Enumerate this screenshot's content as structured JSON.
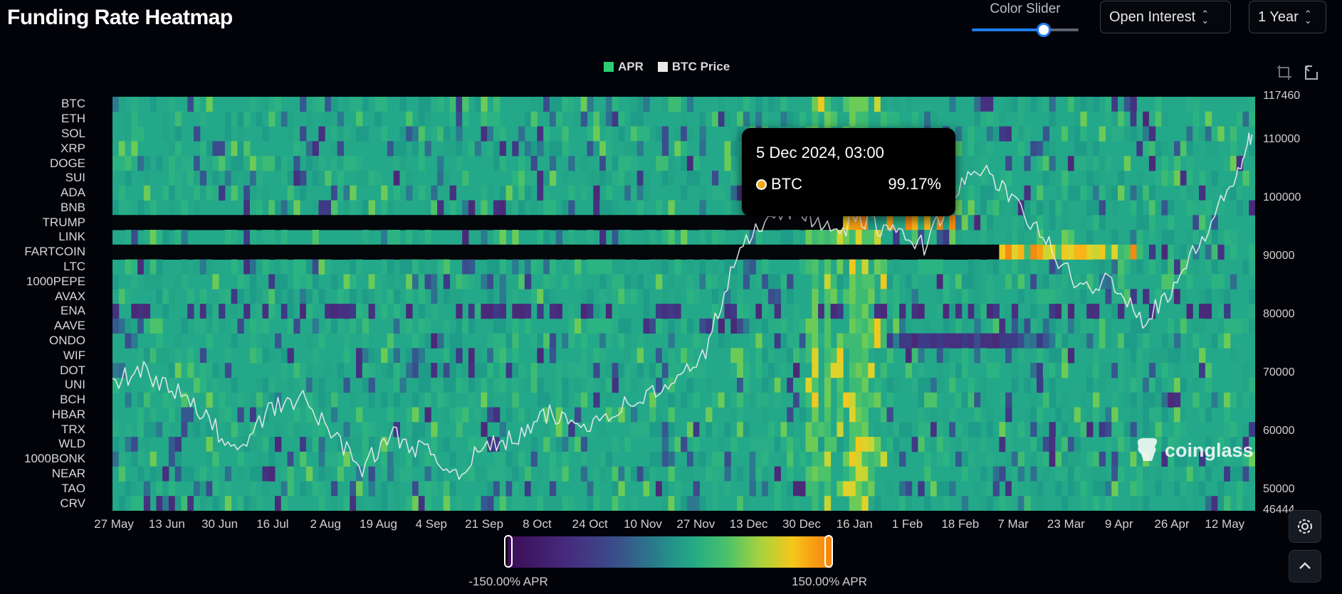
{
  "header": {
    "title": "Funding Rate Heatmap",
    "color_slider_label": "Color Slider",
    "color_slider_value": 0.66,
    "metric_select": "Open Interest",
    "range_select": "1 Year"
  },
  "legend": [
    {
      "label": "APR",
      "color": "#2ecc71"
    },
    {
      "label": "BTC Price",
      "color": "#eaeaea"
    }
  ],
  "tooltip": {
    "title": "5 Dec 2024, 03:00",
    "series": "BTC",
    "value": "99.17%"
  },
  "watermark": "coinglass",
  "colorbar": {
    "min_label": "-150.00% APR",
    "max_label": "150.00% APR"
  },
  "chart_data": {
    "type": "heatmap",
    "y_categories": [
      "BTC",
      "ETH",
      "SOL",
      "XRP",
      "DOGE",
      "SUI",
      "ADA",
      "BNB",
      "TRUMP",
      "LINK",
      "FARTCOIN",
      "LTC",
      "1000PEPE",
      "AVAX",
      "ENA",
      "AAVE",
      "ONDO",
      "WIF",
      "DOT",
      "UNI",
      "BCH",
      "HBAR",
      "TRX",
      "WLD",
      "1000BONK",
      "NEAR",
      "TAO",
      "CRV"
    ],
    "x_tick_labels": [
      "27 May",
      "13 Jun",
      "30 Jun",
      "16 Jul",
      "2 Aug",
      "19 Aug",
      "4 Sep",
      "21 Sep",
      "8 Oct",
      "24 Oct",
      "10 Nov",
      "27 Nov",
      "13 Dec",
      "30 Dec",
      "16 Jan",
      "1 Feb",
      "18 Feb",
      "7 Mar",
      "23 Mar",
      "9 Apr",
      "26 Apr",
      "12 May"
    ],
    "right_axis_ticks": [
      "117460",
      "110000",
      "100000",
      "90000",
      "80000",
      "70000",
      "60000",
      "50000",
      "46444"
    ],
    "right_axis_range": [
      46444,
      117460
    ],
    "color_range_apr": [
      -150,
      150
    ],
    "no_data_rows": [
      {
        "symbol": "TRUMP",
        "until_day": 233
      },
      {
        "symbol": "LINK",
        "until_day": 0
      },
      {
        "symbol": "FARTCOIN",
        "until_day": 283
      }
    ],
    "btc_price": {
      "day": [
        0,
        10,
        20,
        30,
        40,
        50,
        60,
        70,
        80,
        90,
        100,
        110,
        120,
        130,
        140,
        150,
        160,
        170,
        180,
        190,
        200,
        210,
        220,
        230,
        240,
        250,
        260,
        270,
        280,
        290,
        300,
        310,
        320,
        330,
        340,
        350,
        360,
        365
      ],
      "price": [
        68500,
        70500,
        67000,
        62500,
        56000,
        63500,
        66000,
        60000,
        54000,
        59500,
        56500,
        53000,
        57500,
        59000,
        63000,
        61000,
        63500,
        66000,
        68000,
        74000,
        90000,
        97500,
        98500,
        94000,
        96500,
        94000,
        92000,
        101500,
        105000,
        98500,
        92000,
        84000,
        86500,
        79000,
        85000,
        94000,
        104000,
        111000
      ]
    },
    "hot_stripes_days": [
      225,
      229,
      237,
      238,
      239,
      240,
      241
    ]
  }
}
